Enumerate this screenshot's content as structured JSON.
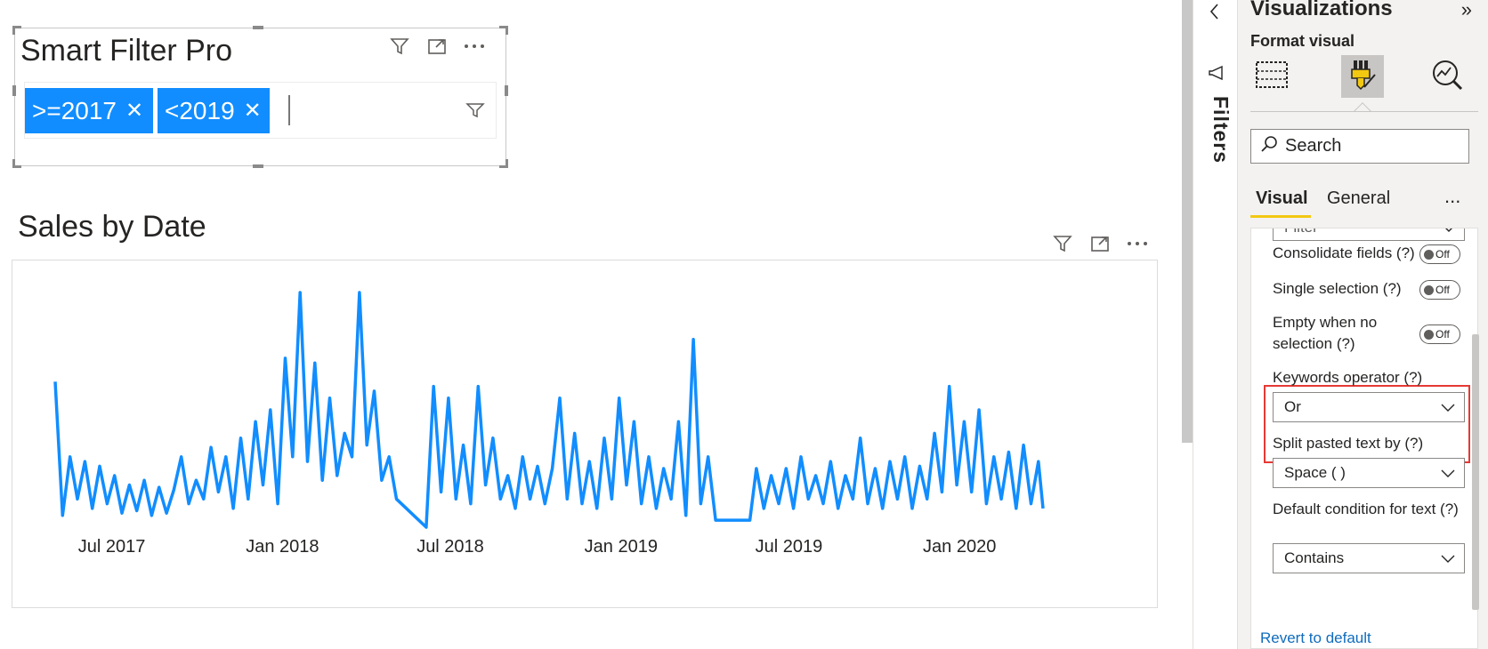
{
  "smart_filter": {
    "title": "Smart Filter Pro",
    "chips": [
      {
        "label": ">=2017"
      },
      {
        "label": "<2019"
      }
    ],
    "icons": [
      "filter-icon",
      "focus-mode-icon",
      "more-options-icon"
    ]
  },
  "chart": {
    "title": "Sales by Date",
    "icons": [
      "filter-icon",
      "focus-mode-icon",
      "more-options-icon"
    ]
  },
  "chart_data": {
    "type": "line",
    "title": "Sales by Date",
    "color": "#118dff",
    "x_ticks": [
      "Jul 2017",
      "Jan 2018",
      "Jul 2018",
      "Jan 2019",
      "Jul 2019",
      "Jan 2020"
    ],
    "x_range": [
      "2017-05-01",
      "2020-03-31"
    ],
    "grid": false,
    "legend": "none",
    "series": [
      {
        "points": [
          [
            "2017-05-01",
            0.62
          ],
          [
            "2017-05-09",
            0.05
          ],
          [
            "2017-05-17",
            0.3
          ],
          [
            "2017-05-25",
            0.12
          ],
          [
            "2017-06-02",
            0.28
          ],
          [
            "2017-06-10",
            0.08
          ],
          [
            "2017-06-18",
            0.26
          ],
          [
            "2017-06-26",
            0.1
          ],
          [
            "2017-07-04",
            0.22
          ],
          [
            "2017-07-12",
            0.06
          ],
          [
            "2017-07-20",
            0.18
          ],
          [
            "2017-07-28",
            0.07
          ],
          [
            "2017-08-05",
            0.2
          ],
          [
            "2017-08-13",
            0.05
          ],
          [
            "2017-08-21",
            0.17
          ],
          [
            "2017-08-29",
            0.06
          ],
          [
            "2017-09-06",
            0.16
          ],
          [
            "2017-09-14",
            0.3
          ],
          [
            "2017-09-22",
            0.1
          ],
          [
            "2017-09-30",
            0.2
          ],
          [
            "2017-10-08",
            0.12
          ],
          [
            "2017-10-16",
            0.34
          ],
          [
            "2017-10-24",
            0.15
          ],
          [
            "2017-11-01",
            0.3
          ],
          [
            "2017-11-09",
            0.08
          ],
          [
            "2017-11-17",
            0.38
          ],
          [
            "2017-11-25",
            0.12
          ],
          [
            "2017-12-03",
            0.45
          ],
          [
            "2017-12-11",
            0.18
          ],
          [
            "2017-12-19",
            0.5
          ],
          [
            "2017-12-27",
            0.1
          ],
          [
            "2018-01-04",
            0.72
          ],
          [
            "2018-01-12",
            0.3
          ],
          [
            "2018-01-20",
            1.0
          ],
          [
            "2018-01-28",
            0.28
          ],
          [
            "2018-02-05",
            0.7
          ],
          [
            "2018-02-13",
            0.2
          ],
          [
            "2018-02-21",
            0.55
          ],
          [
            "2018-03-01",
            0.22
          ],
          [
            "2018-03-09",
            0.4
          ],
          [
            "2018-03-17",
            0.3
          ],
          [
            "2018-03-25",
            1.0
          ],
          [
            "2018-04-02",
            0.35
          ],
          [
            "2018-04-10",
            0.58
          ],
          [
            "2018-04-18",
            0.2
          ],
          [
            "2018-04-26",
            0.3
          ],
          [
            "2018-05-04",
            0.12
          ],
          [
            "2018-05-20",
            0.06
          ],
          [
            "2018-06-05",
            0.0
          ],
          [
            "2018-06-13",
            0.6
          ],
          [
            "2018-06-21",
            0.15
          ],
          [
            "2018-06-29",
            0.55
          ],
          [
            "2018-07-07",
            0.12
          ],
          [
            "2018-07-15",
            0.35
          ],
          [
            "2018-07-23",
            0.1
          ],
          [
            "2018-07-31",
            0.6
          ],
          [
            "2018-08-08",
            0.18
          ],
          [
            "2018-08-16",
            0.38
          ],
          [
            "2018-08-24",
            0.12
          ],
          [
            "2018-09-01",
            0.22
          ],
          [
            "2018-09-09",
            0.08
          ],
          [
            "2018-09-17",
            0.3
          ],
          [
            "2018-09-25",
            0.12
          ],
          [
            "2018-10-03",
            0.26
          ],
          [
            "2018-10-11",
            0.1
          ],
          [
            "2018-10-19",
            0.25
          ],
          [
            "2018-10-27",
            0.55
          ],
          [
            "2018-11-04",
            0.12
          ],
          [
            "2018-11-12",
            0.4
          ],
          [
            "2018-11-20",
            0.1
          ],
          [
            "2018-11-28",
            0.28
          ],
          [
            "2018-12-06",
            0.08
          ],
          [
            "2018-12-14",
            0.38
          ],
          [
            "2018-12-22",
            0.12
          ],
          [
            "2018-12-30",
            0.55
          ],
          [
            "2019-01-07",
            0.18
          ],
          [
            "2019-01-15",
            0.45
          ],
          [
            "2019-01-23",
            0.1
          ],
          [
            "2019-01-31",
            0.3
          ],
          [
            "2019-02-08",
            0.08
          ],
          [
            "2019-02-16",
            0.25
          ],
          [
            "2019-02-24",
            0.12
          ],
          [
            "2019-03-04",
            0.45
          ],
          [
            "2019-03-12",
            0.05
          ],
          [
            "2019-03-20",
            0.8
          ],
          [
            "2019-03-28",
            0.1
          ],
          [
            "2019-04-05",
            0.3
          ],
          [
            "2019-04-13",
            0.03
          ],
          [
            "2019-05-10",
            0.03
          ],
          [
            "2019-05-20",
            0.03
          ],
          [
            "2019-05-27",
            0.25
          ],
          [
            "2019-06-04",
            0.08
          ],
          [
            "2019-06-12",
            0.22
          ],
          [
            "2019-06-20",
            0.1
          ],
          [
            "2019-06-28",
            0.25
          ],
          [
            "2019-07-06",
            0.08
          ],
          [
            "2019-07-14",
            0.3
          ],
          [
            "2019-07-22",
            0.12
          ],
          [
            "2019-07-30",
            0.22
          ],
          [
            "2019-08-07",
            0.1
          ],
          [
            "2019-08-15",
            0.28
          ],
          [
            "2019-08-23",
            0.08
          ],
          [
            "2019-08-31",
            0.22
          ],
          [
            "2019-09-08",
            0.12
          ],
          [
            "2019-09-16",
            0.38
          ],
          [
            "2019-09-24",
            0.1
          ],
          [
            "2019-10-02",
            0.25
          ],
          [
            "2019-10-10",
            0.08
          ],
          [
            "2019-10-18",
            0.28
          ],
          [
            "2019-10-26",
            0.12
          ],
          [
            "2019-11-03",
            0.3
          ],
          [
            "2019-11-11",
            0.08
          ],
          [
            "2019-11-19",
            0.26
          ],
          [
            "2019-11-27",
            0.12
          ],
          [
            "2019-12-05",
            0.4
          ],
          [
            "2019-12-13",
            0.15
          ],
          [
            "2019-12-21",
            0.6
          ],
          [
            "2019-12-29",
            0.18
          ],
          [
            "2020-01-06",
            0.45
          ],
          [
            "2020-01-14",
            0.15
          ],
          [
            "2020-01-22",
            0.5
          ],
          [
            "2020-01-30",
            0.1
          ],
          [
            "2020-02-07",
            0.3
          ],
          [
            "2020-02-15",
            0.12
          ],
          [
            "2020-02-23",
            0.32
          ],
          [
            "2020-03-02",
            0.08
          ],
          [
            "2020-03-10",
            0.35
          ],
          [
            "2020-03-18",
            0.1
          ],
          [
            "2020-03-26",
            0.28
          ],
          [
            "2020-03-31",
            0.08
          ]
        ]
      }
    ]
  },
  "filters_pane": {
    "label": "Filters",
    "icons": [
      "chevron-left-icon",
      "megaphone-icon"
    ]
  },
  "viz_pane": {
    "title": "Visualizations",
    "collapse_glyph": "»",
    "subtitle": "Format visual",
    "tabs": [
      "build-visual-icon",
      "format-visual-icon",
      "analytics-icon"
    ],
    "search_placeholder": "Search",
    "subtabs": {
      "visual": "Visual",
      "general": "General",
      "more": "..."
    },
    "cutoff_dropdown": "Filter",
    "rows": [
      {
        "label": "Consolidate fields (?)",
        "toggle": "Off"
      },
      {
        "label": "Single selection (?)",
        "toggle": "Off"
      },
      {
        "label": "Empty when no selection (?)",
        "toggle": "Off"
      }
    ],
    "keywords_operator": {
      "label": "Keywords operator (?)",
      "value": "Or"
    },
    "split_pasted": {
      "label": "Split pasted text by (?)",
      "value": "Space ( )"
    },
    "default_condition": {
      "label": "Default condition for text (?)",
      "value": "Contains"
    },
    "revert": "Revert to default"
  }
}
